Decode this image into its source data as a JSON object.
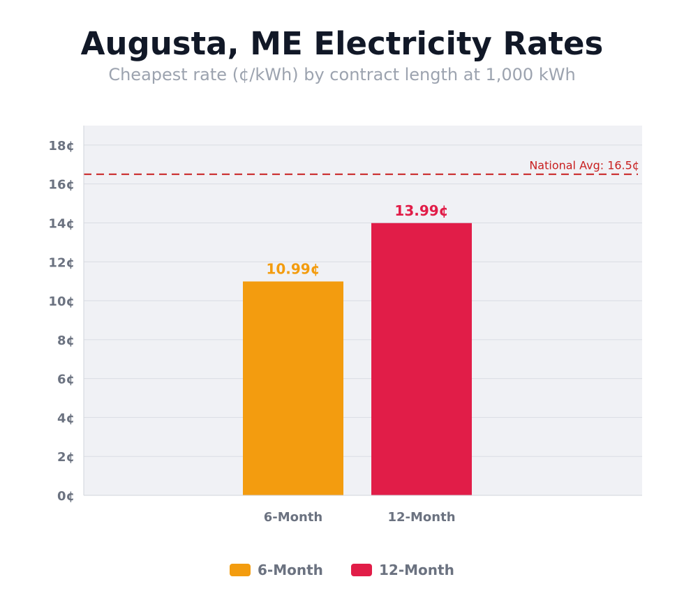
{
  "chart_data": {
    "type": "bar",
    "title": "Augusta, ME Electricity Rates",
    "subtitle": "Cheapest rate (¢/kWh) by contract length at 1,000 kWh",
    "xlabel": "",
    "ylabel": "",
    "categories": [
      "6-Month",
      "12-Month"
    ],
    "values": [
      10.99,
      13.99
    ],
    "data_labels": [
      "10.99¢",
      "13.99¢"
    ],
    "colors": [
      "#f39c0f",
      "#e11d48"
    ],
    "ylim": [
      0,
      19
    ],
    "y_ticks": [
      0,
      2,
      4,
      6,
      8,
      10,
      12,
      14,
      16,
      18
    ],
    "y_tick_labels": [
      "0¢",
      "2¢",
      "4¢",
      "6¢",
      "8¢",
      "10¢",
      "12¢",
      "14¢",
      "16¢",
      "18¢"
    ],
    "reference_line": {
      "value": 16.5,
      "label": "National Avg: 16.5¢",
      "color": "#c81e1e",
      "style": "dashed"
    },
    "legend": {
      "placement": "bottom-center",
      "entries": [
        {
          "label": "6-Month",
          "color": "#f39c0f"
        },
        {
          "label": "12-Month",
          "color": "#e11d48"
        }
      ]
    },
    "grid": true,
    "plot_background": "#f0f1f5"
  }
}
